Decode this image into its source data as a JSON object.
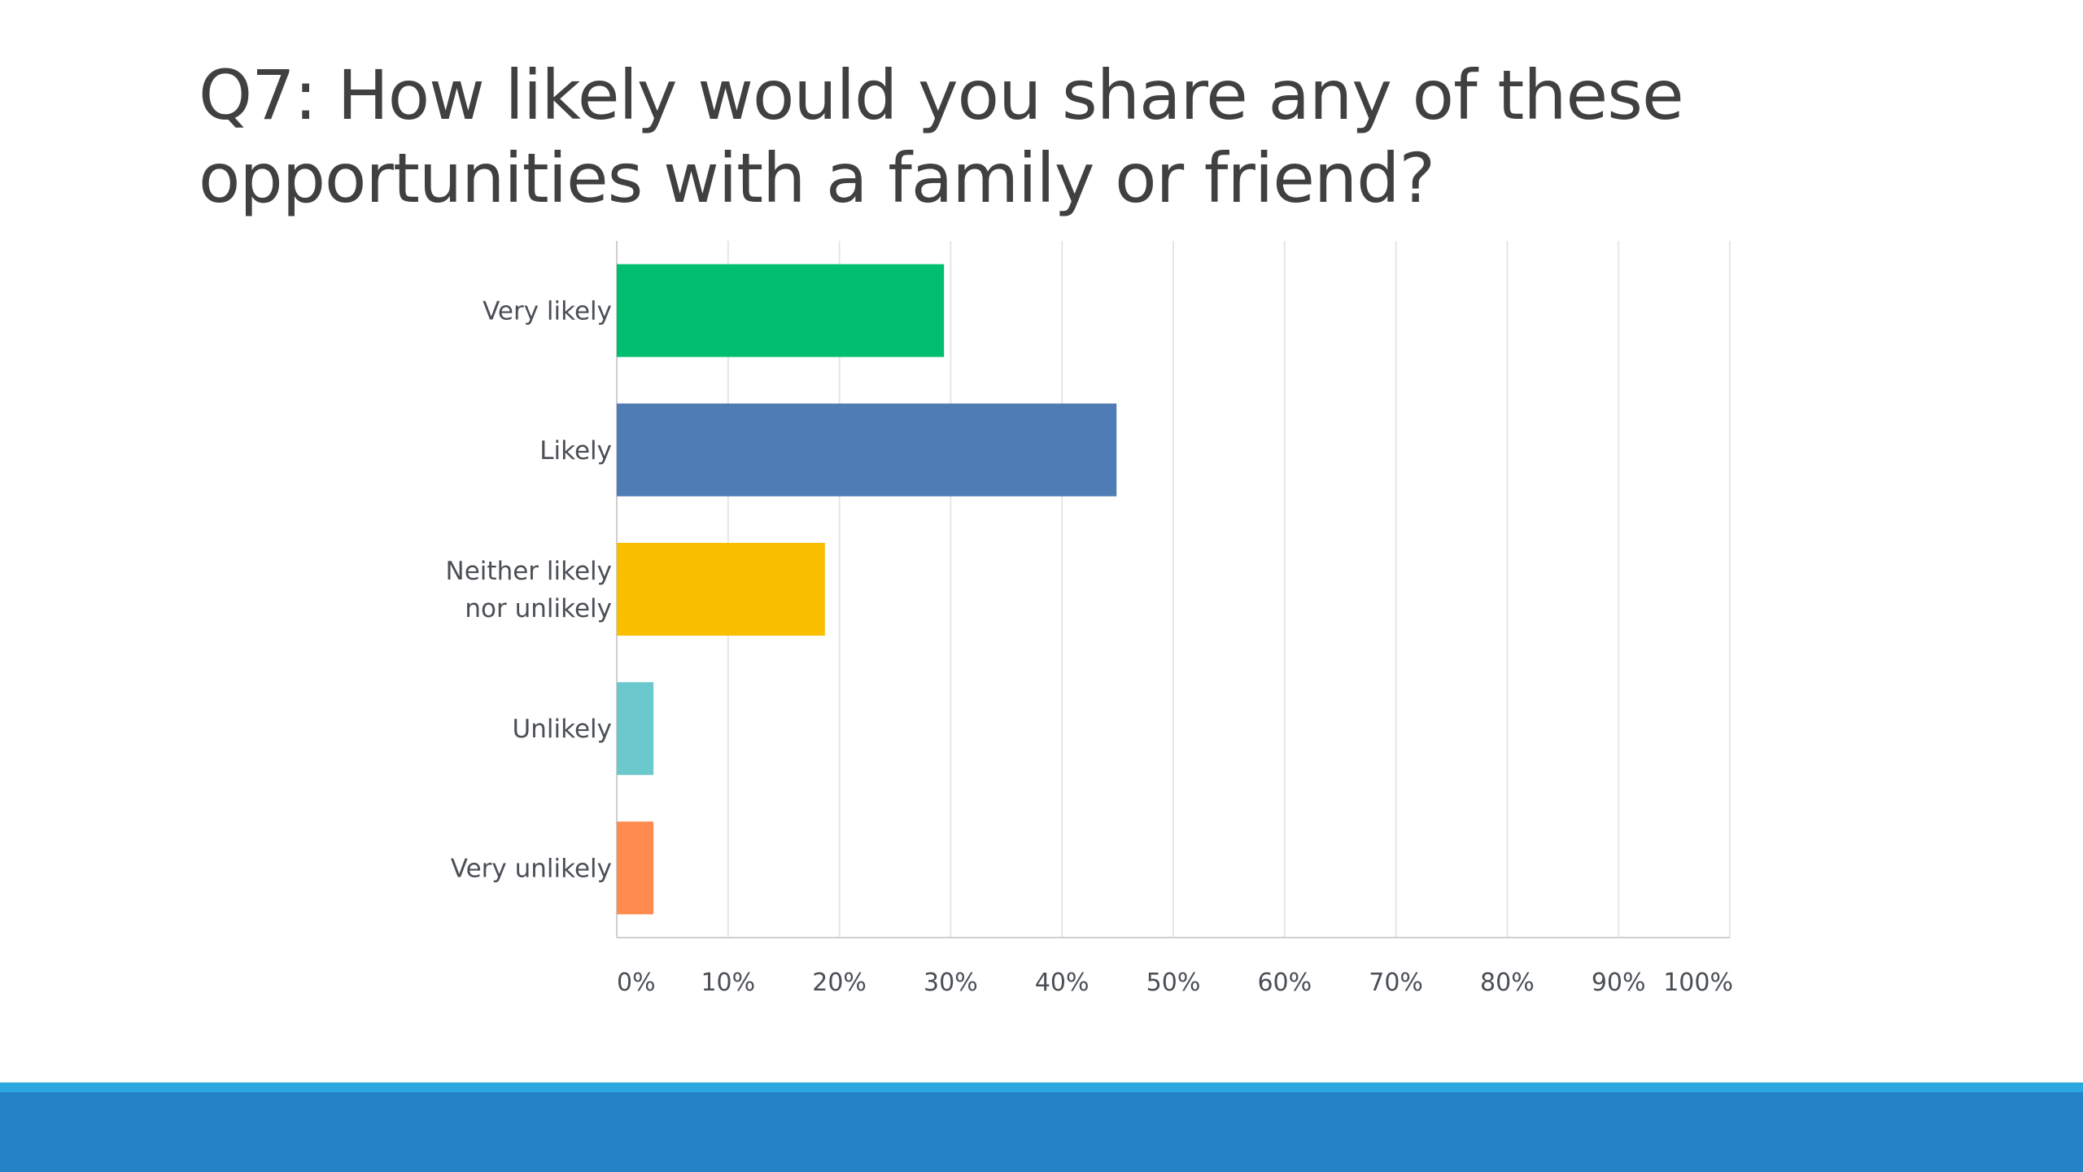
{
  "slide": {
    "title": "Q7: How likely would you share any of these opportunities with a family or friend?"
  },
  "colors": {
    "footer_line": "#2aa7df",
    "footer_bar": "#2582c5",
    "gridline": "#e6e6e6",
    "axis": "#cfcfcf"
  },
  "chart_data": {
    "type": "bar",
    "orientation": "horizontal",
    "title": "",
    "xlabel": "",
    "ylabel": "",
    "xlim": [
      0,
      100
    ],
    "ticks": [
      "0%",
      "10%",
      "20%",
      "30%",
      "40%",
      "50%",
      "60%",
      "70%",
      "80%",
      "90%",
      "100%"
    ],
    "grid": true,
    "legend": "none",
    "categories": [
      [
        "Very likely"
      ],
      [
        "Likely"
      ],
      [
        "Neither likely",
        "nor unlikely"
      ],
      [
        "Unlikely"
      ],
      [
        "Very unlikely"
      ]
    ],
    "values": [
      29.4,
      44.9,
      18.7,
      3.3,
      3.3
    ],
    "unit": "%",
    "colors": [
      "#00bf6f",
      "#507cb6",
      "#f9be00",
      "#6bc8cd",
      "#ff8b4f"
    ]
  }
}
